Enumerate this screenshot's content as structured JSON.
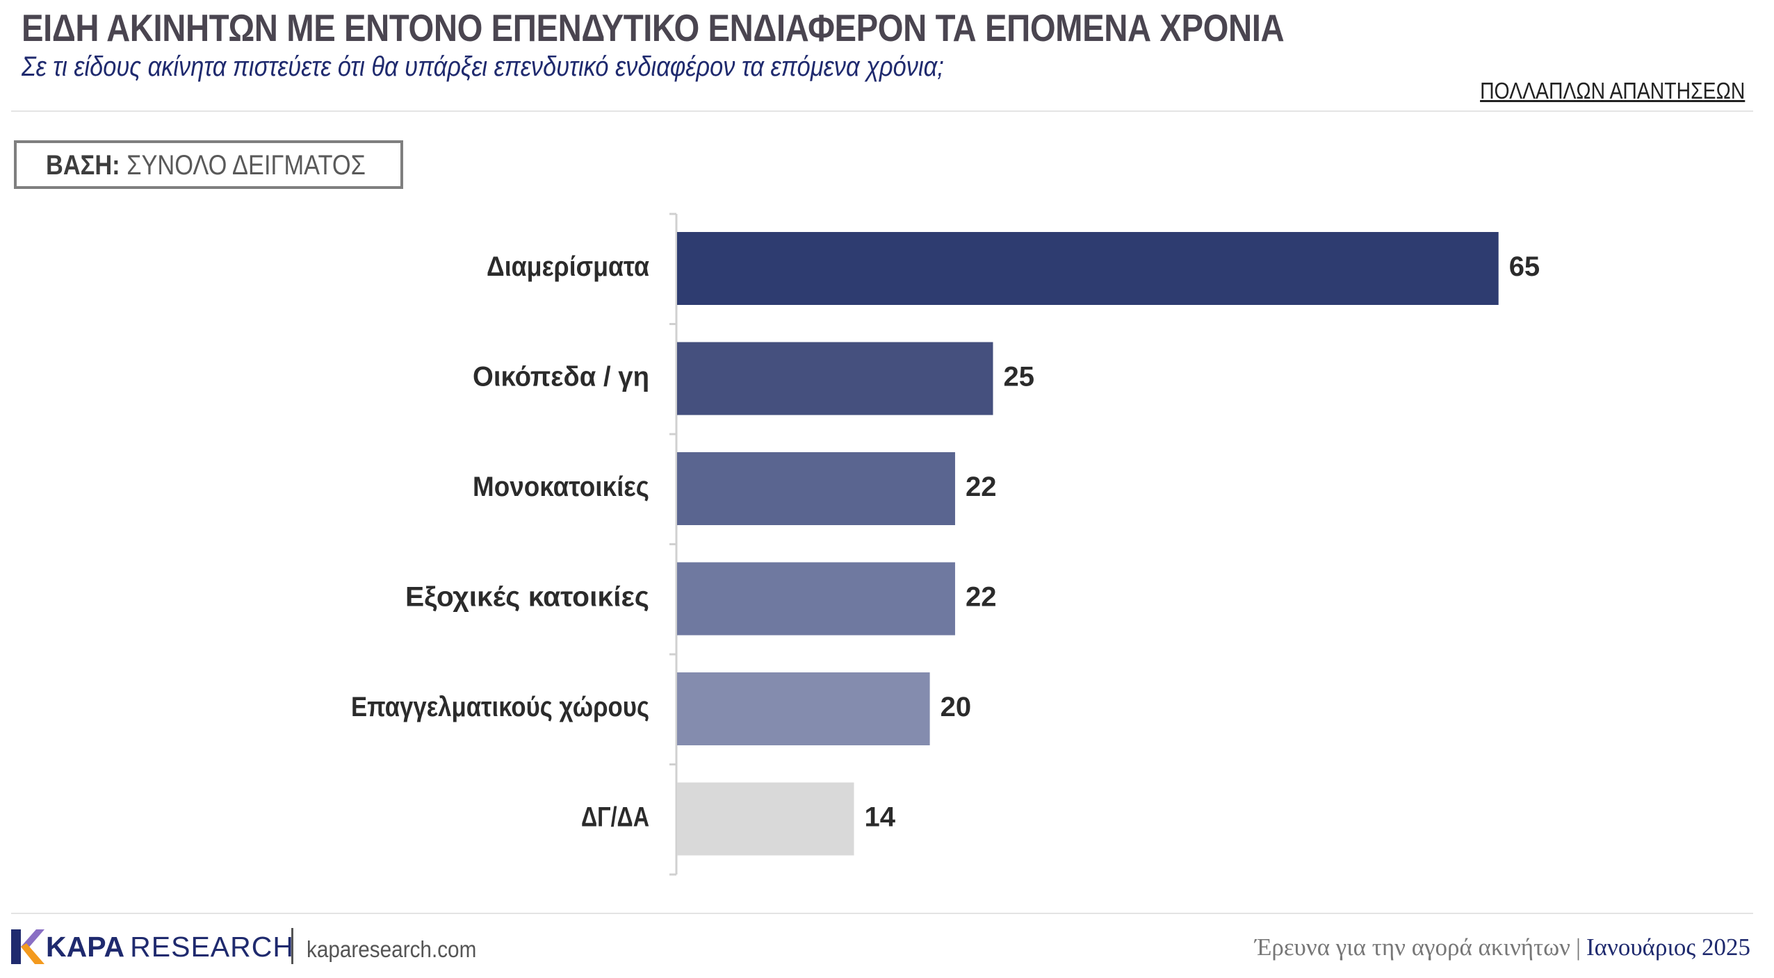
{
  "header": {
    "title": "ΕΙΔΗ ΑΚΙΝΗΤΩΝ ΜΕ ΕΝΤΟΝΟ ΕΠΕΝΔΥΤΙΚΟ ΕΝΔΙΑΦΕΡΟΝ ΤΑ ΕΠΟΜΕΝΑ ΧΡΟΝΙΑ",
    "subtitle": "Σε τι είδους ακίνητα πιστεύετε ότι θα υπάρξει επενδυτικό ενδιαφέρον τα επόμενα χρόνια;",
    "multi_label": "ΠΟΛΛΑΠΛΩΝ ΑΠΑΝΤΗΣΕΩΝ"
  },
  "base": {
    "label": "ΒΑΣΗ:",
    "value": "ΣΥΝΟΛΟ ΔΕΙΓΜΑΤΟΣ"
  },
  "chart_data": {
    "type": "bar",
    "orientation": "horizontal",
    "categories": [
      "Διαμερίσματα",
      "Οικόπεδα / γη",
      "Μονοκατοικίες",
      "Εξοχικές κατοικίες",
      "Επαγγελματικούς χώρους",
      "ΔΓ/ΔΑ"
    ],
    "values": [
      65,
      25,
      22,
      22,
      20,
      14
    ],
    "data_labels": [
      "65",
      "25",
      "22",
      "22",
      "20",
      "14"
    ],
    "colors": [
      "#2e3c70",
      "#45507e",
      "#5a6590",
      "#6f79a0",
      "#848cae",
      "#d9d9d9"
    ],
    "xlim": [
      0,
      65
    ],
    "grid": false,
    "legend": "none"
  },
  "footer": {
    "brand_bold": "KAPA",
    "brand_rest": "RESEARCH",
    "url": "kaparesearch.com",
    "survey": "Έρευνα για την αγορά ακινήτων",
    "separator": "|",
    "date": "Ιανουάριος 2025",
    "colors": {
      "navy": "#1f2a6e",
      "logo_orange": "#f39a1e",
      "logo_blue": "#1f2a6e",
      "logo_purple": "#8a6fc4"
    }
  }
}
